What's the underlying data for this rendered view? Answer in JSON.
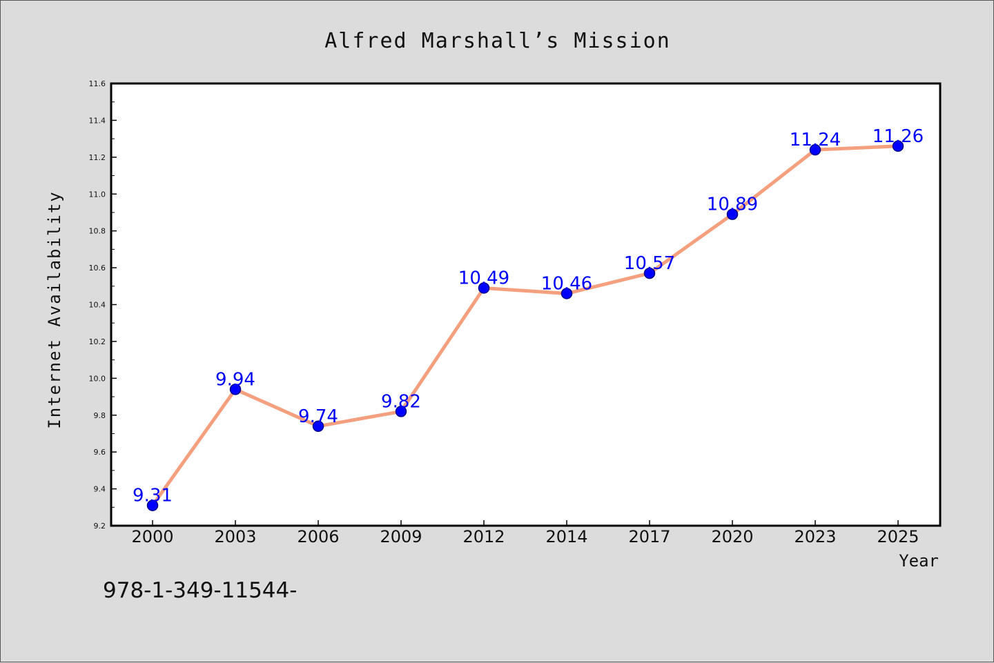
{
  "chart_data": {
    "type": "line",
    "title": "Alfred Marshall’s Mission",
    "xlabel": "Year",
    "ylabel": "Internet Availability",
    "categories": [
      "2000",
      "2003",
      "2006",
      "2009",
      "2012",
      "2014",
      "2017",
      "2020",
      "2023",
      "2025"
    ],
    "series": [
      {
        "values": [
          9.31,
          9.94,
          9.74,
          9.82,
          10.49,
          10.46,
          10.57,
          10.89,
          11.24,
          11.26
        ]
      }
    ],
    "data_labels": [
      "9.31",
      "9.94",
      "9.74",
      "9.82",
      "10.49",
      "10.46",
      "10.57",
      "10.89",
      "11.24",
      "11.26"
    ],
    "ylim": [
      9.2,
      11.6
    ],
    "yticks": [
      "9.2",
      "9.4",
      "9.6",
      "9.8",
      "10.0",
      "10.2",
      "10.4",
      "10.6",
      "10.8",
      "11.0",
      "11.2",
      "11.4",
      "11.6"
    ],
    "grid": false,
    "colors": {
      "line": "#f4a07e",
      "marker": "#0000ff",
      "label": "#0000ff",
      "background": "#dcdcdc",
      "plot_background": "#ffffff"
    }
  },
  "footer_text": "978-1-349-11544-"
}
